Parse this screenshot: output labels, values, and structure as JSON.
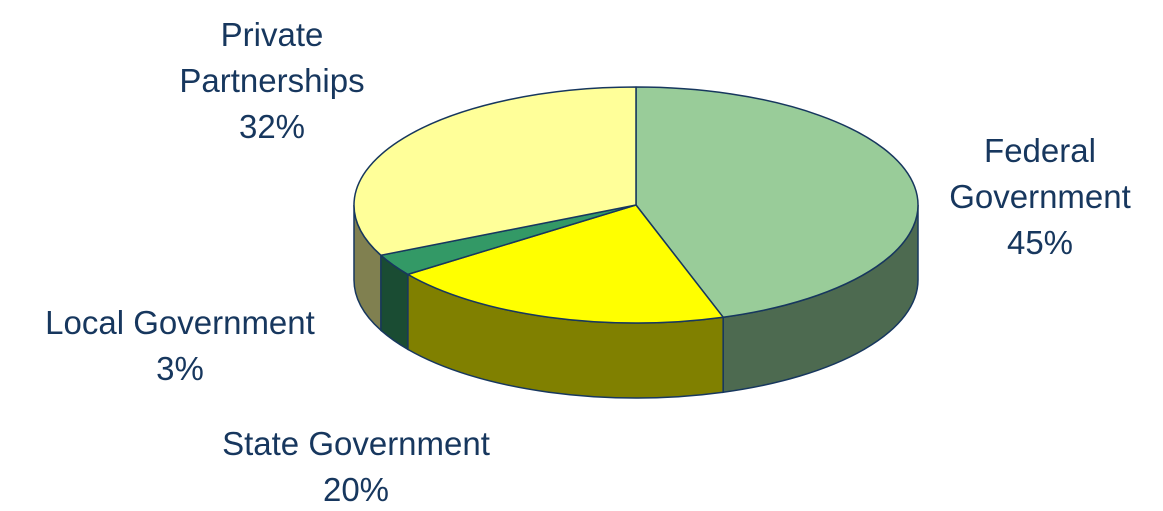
{
  "chart_data": {
    "type": "pie",
    "style": "3d",
    "categories": [
      "Federal Government",
      "State Government",
      "Local Government",
      "Private Partnerships"
    ],
    "values": [
      45,
      20,
      3,
      32
    ],
    "unit": "%",
    "labels": [
      {
        "lines": [
          "Federal",
          "Government"
        ],
        "percent": "45%"
      },
      {
        "lines": [
          "State Government"
        ],
        "percent": "20%"
      },
      {
        "lines": [
          "Local Government"
        ],
        "percent": "3%"
      },
      {
        "lines": [
          "Private",
          "Partnerships"
        ],
        "percent": "32%"
      }
    ],
    "colors": [
      {
        "top": "#99cc99",
        "side": "#4d6a50"
      },
      {
        "top": "#ffff00",
        "side": "#808000"
      },
      {
        "top": "#339966",
        "side": "#1a4c33"
      },
      {
        "top": "#ffff99",
        "side": "#808050"
      }
    ],
    "outline_color": "#17375e",
    "label_color": "#17375e"
  }
}
